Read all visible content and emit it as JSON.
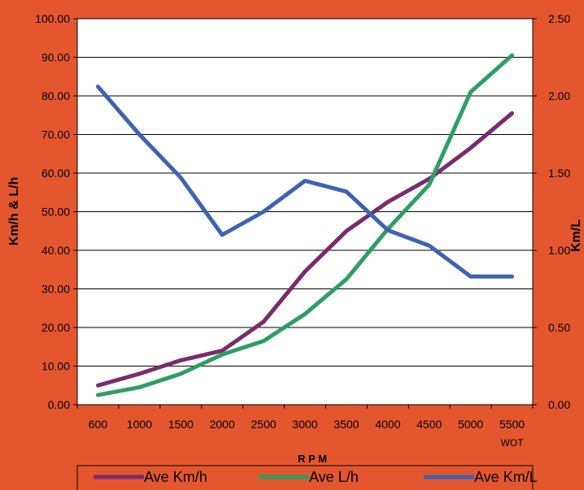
{
  "colors": {
    "background": "#E4572E",
    "plot_area": "#FFFFFF",
    "km_h": "#7B2A6E",
    "l_h": "#2E9E63",
    "km_l": "#3E63B0"
  },
  "chart_data": {
    "type": "line",
    "title": "",
    "xlabel": "R P M",
    "ylabel": "Km/h & L/h",
    "y2label": "Km/L",
    "categories": [
      "600",
      "1000",
      "1500",
      "2000",
      "2500",
      "3000",
      "3500",
      "4000",
      "4500",
      "5000",
      "5500"
    ],
    "category_sublabels": [
      "",
      "",
      "",
      "",
      "",
      "",
      "",
      "",
      "",
      "",
      "WOT"
    ],
    "ylim": [
      0,
      100
    ],
    "y_ticks": [
      "0.00",
      "10.00",
      "20.00",
      "30.00",
      "40.00",
      "50.00",
      "60.00",
      "70.00",
      "80.00",
      "90.00",
      "100.00"
    ],
    "y2lim": [
      0,
      2.5
    ],
    "y2_ticks": [
      "0.00",
      "0.50",
      "1.00",
      "1.50",
      "2.00",
      "2.50"
    ],
    "grid": true,
    "legend_position": "bottom",
    "series": [
      {
        "name": "Ave Km/h",
        "axis": "left",
        "color": "#7B2A6E",
        "values": [
          5,
          8,
          11.5,
          14,
          21.5,
          34.5,
          45,
          52.5,
          58.5,
          66.5,
          75.5
        ]
      },
      {
        "name": "Ave L/h",
        "axis": "left",
        "color": "#2E9E63",
        "values": [
          2.5,
          4.5,
          8,
          13,
          16.5,
          23.5,
          32.5,
          45.5,
          57,
          81,
          90.5
        ]
      },
      {
        "name": "Ave Km/L",
        "axis": "right",
        "color": "#3E63B0",
        "values": [
          2.06,
          1.75,
          1.47,
          1.1,
          1.25,
          1.45,
          1.38,
          1.13,
          1.03,
          0.83,
          0.83
        ]
      }
    ]
  }
}
